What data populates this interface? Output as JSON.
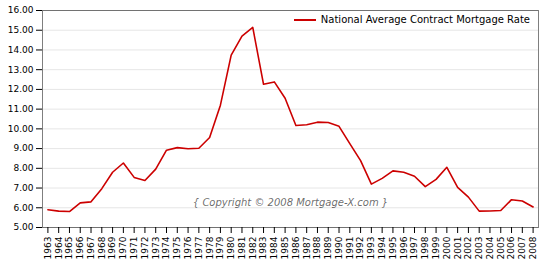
{
  "chart_data": {
    "type": "line",
    "x": [
      1963,
      1964,
      1965,
      1966,
      1967,
      1968,
      1969,
      1970,
      1971,
      1972,
      1973,
      1974,
      1975,
      1976,
      1977,
      1978,
      1979,
      1980,
      1981,
      1982,
      1983,
      1984,
      1985,
      1986,
      1987,
      1988,
      1989,
      1990,
      1991,
      1992,
      1993,
      1994,
      1995,
      1996,
      1997,
      1998,
      1999,
      2000,
      2001,
      2002,
      2003,
      2004,
      2005,
      2006,
      2007,
      2008
    ],
    "series": [
      {
        "name": "National Average Contract Mortgage Rate",
        "color": "#cc0000",
        "values": [
          5.9,
          5.83,
          5.81,
          6.25,
          6.3,
          6.97,
          7.8,
          8.27,
          7.54,
          7.38,
          7.96,
          8.92,
          9.05,
          8.99,
          9.02,
          9.56,
          11.2,
          13.74,
          14.7,
          15.14,
          12.26,
          12.38,
          11.55,
          10.17,
          10.21,
          10.34,
          10.32,
          10.13,
          9.25,
          8.39,
          7.2,
          7.49,
          7.87,
          7.8,
          7.6,
          7.07,
          7.44,
          8.05,
          7.03,
          6.54,
          5.83,
          5.84,
          5.86,
          6.41,
          6.34,
          6.04
        ]
      }
    ],
    "xlim": [
      1962.5,
      2008.5
    ],
    "xticks": [
      1963,
      1964,
      1965,
      1966,
      1967,
      1968,
      1969,
      1970,
      1971,
      1972,
      1973,
      1974,
      1975,
      1976,
      1977,
      1978,
      1979,
      1980,
      1981,
      1982,
      1983,
      1984,
      1985,
      1986,
      1987,
      1988,
      1989,
      1990,
      1991,
      1992,
      1993,
      1994,
      1995,
      1996,
      1997,
      1998,
      1999,
      2000,
      2001,
      2002,
      2003,
      2004,
      2005,
      2006,
      2007,
      2008
    ],
    "ylim": [
      5.0,
      16.0
    ],
    "yticks": [
      {
        "value": 5.0,
        "label": "5.00"
      },
      {
        "value": 6.0,
        "label": "6.00"
      },
      {
        "value": 7.0,
        "label": "7.00"
      },
      {
        "value": 8.0,
        "label": "8.00"
      },
      {
        "value": 9.0,
        "label": "9.00"
      },
      {
        "value": 10.0,
        "label": "10.00"
      },
      {
        "value": 11.0,
        "label": "11.00"
      },
      {
        "value": 12.0,
        "label": "12.00"
      },
      {
        "value": 13.0,
        "label": "13.00"
      },
      {
        "value": 14.0,
        "label": "14.00"
      },
      {
        "value": 15.0,
        "label": "15.00"
      },
      {
        "value": 16.0,
        "label": "16.00"
      }
    ],
    "grid": true,
    "legend": "top-right",
    "annotations": [
      "{ Copyright © 2008 Mortgage-X.com }"
    ]
  }
}
